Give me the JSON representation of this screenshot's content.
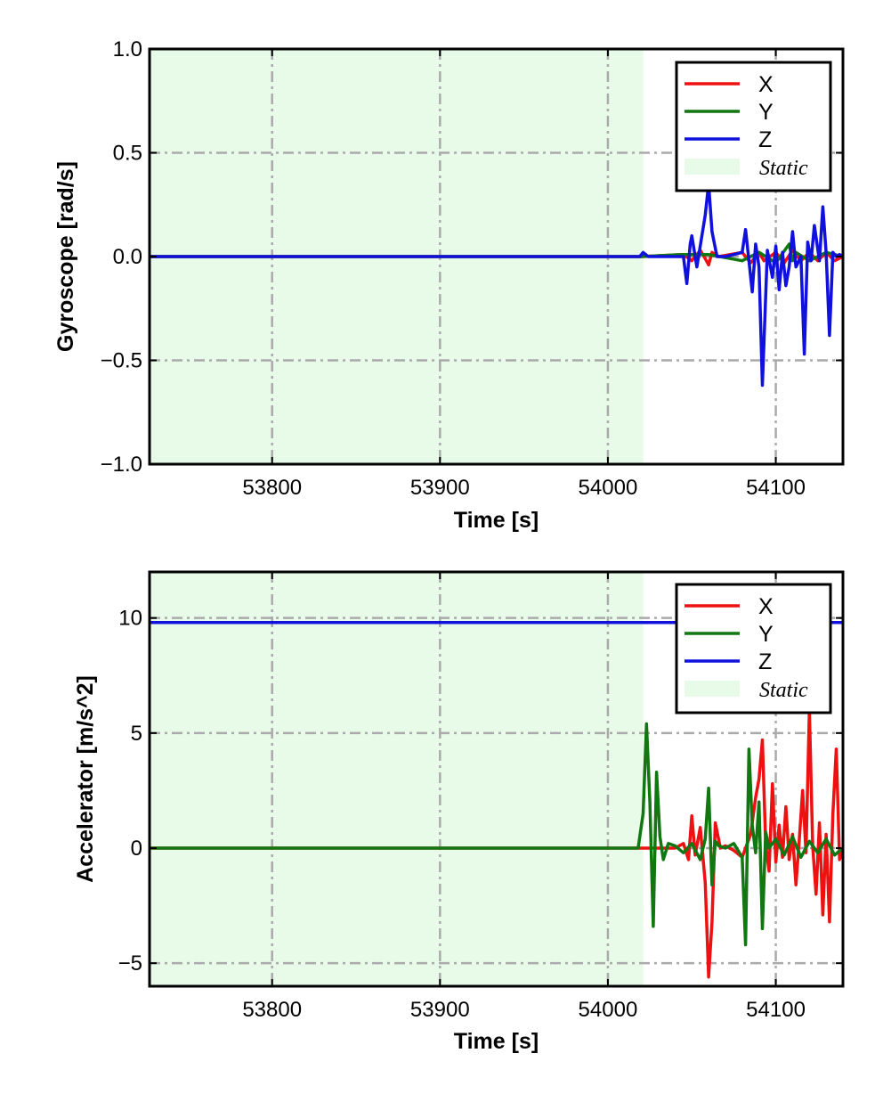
{
  "chart_data": [
    {
      "type": "line",
      "xlabel": "Time [s]",
      "ylabel": "Gyroscope [rad/s]",
      "xlim": [
        53727,
        54140
      ],
      "ylim": [
        -1.0,
        1.0
      ],
      "xticks": [
        53800,
        53900,
        54000,
        54100
      ],
      "xtick_labels": [
        "53800",
        "53900",
        "54000",
        "54100"
      ],
      "yticks": [
        -1.0,
        -0.5,
        0.0,
        0.5,
        1.0
      ],
      "ytick_labels": [
        "−1.0",
        "−0.5",
        "0.0",
        "0.5",
        "1.0"
      ],
      "grid": true,
      "legend_position": "top-right",
      "static_region": {
        "label": "Static",
        "color": "#e8fbe8",
        "x_start": 53727,
        "x_end": 54021
      },
      "series": [
        {
          "name": "X",
          "color": "#ee1111",
          "x": [
            53727,
            54020,
            54045,
            54050,
            54055,
            54058,
            54060,
            54062,
            54066,
            54080,
            54085,
            54090,
            54093,
            54100,
            54105,
            54110,
            54115,
            54120,
            54125,
            54130,
            54135,
            54140
          ],
          "y": [
            0.0,
            0.0,
            0.01,
            -0.02,
            0.03,
            -0.01,
            -0.04,
            0.02,
            0.0,
            0.02,
            -0.03,
            0.02,
            -0.02,
            0.02,
            -0.03,
            0.03,
            -0.02,
            0.02,
            -0.02,
            0.02,
            -0.02,
            0.0
          ]
        },
        {
          "name": "Y",
          "color": "#117711",
          "x": [
            53727,
            54020,
            54045,
            54060,
            54080,
            54090,
            54100,
            54108,
            54110,
            54112,
            54120,
            54130,
            54140
          ],
          "y": [
            0.0,
            0.0,
            0.01,
            0.01,
            -0.02,
            0.02,
            -0.03,
            0.06,
            -0.02,
            0.02,
            -0.02,
            0.02,
            0.0
          ]
        },
        {
          "name": "Z",
          "color": "#1111dd",
          "x": [
            53727,
            54019,
            54021,
            54024,
            54045,
            54047,
            54049,
            54050,
            54053,
            54058,
            54060,
            54062,
            54065,
            54070,
            54080,
            54082,
            54084,
            54086,
            54088,
            54090,
            54092,
            54095,
            54098,
            54100,
            54102,
            54104,
            54106,
            54108,
            54110,
            54112,
            54115,
            54117,
            54119,
            54121,
            54123,
            54126,
            54128,
            54130,
            54132,
            54134,
            54136,
            54138,
            54140
          ],
          "y": [
            0.0,
            0.0,
            0.02,
            0.0,
            0.0,
            -0.13,
            0.06,
            0.1,
            -0.05,
            0.2,
            0.35,
            0.12,
            0.0,
            0.0,
            0.02,
            0.13,
            -0.02,
            -0.17,
            0.06,
            -0.05,
            -0.62,
            0.03,
            -0.1,
            0.05,
            -0.16,
            0.02,
            -0.14,
            -0.05,
            0.12,
            -0.05,
            0.0,
            -0.47,
            0.07,
            -0.02,
            0.15,
            -0.02,
            0.24,
            0.02,
            -0.38,
            0.02,
            0.0,
            0.01,
            0.0
          ]
        }
      ]
    },
    {
      "type": "line",
      "xlabel": "Time [s]",
      "ylabel": "Accelerator [m/s^2]",
      "xlim": [
        53727,
        54140
      ],
      "ylim": [
        -6,
        12
      ],
      "xticks": [
        53800,
        53900,
        54000,
        54100
      ],
      "xtick_labels": [
        "53800",
        "53900",
        "54000",
        "54100"
      ],
      "yticks": [
        -5,
        0,
        5,
        10
      ],
      "ytick_labels": [
        "−5",
        "0",
        "5",
        "10"
      ],
      "grid": true,
      "legend_position": "top-right",
      "static_region": {
        "label": "Static",
        "color": "#e8fbe8",
        "x_start": 53727,
        "x_end": 54021
      },
      "series": [
        {
          "name": "X",
          "color": "#ee1111",
          "x": [
            53727,
            54020,
            54040,
            54045,
            54048,
            54050,
            54052,
            54055,
            54058,
            54060,
            54062,
            54064,
            54067,
            54070,
            54075,
            54080,
            54085,
            54088,
            54090,
            54092,
            54094,
            54096,
            54098,
            54100,
            54102,
            54104,
            54106,
            54108,
            54110,
            54112,
            54114,
            54116,
            54118,
            54120,
            54122,
            54124,
            54126,
            54128,
            54130,
            54132,
            54134,
            54136,
            54138,
            54140
          ],
          "y": [
            0.0,
            0.0,
            0.0,
            0.2,
            -0.5,
            1.4,
            -0.3,
            0.9,
            -1.5,
            -5.6,
            -3.2,
            1.1,
            0.0,
            0.1,
            -0.1,
            -0.4,
            0.6,
            2.2,
            3.0,
            4.7,
            0.2,
            -1.0,
            2.8,
            -0.6,
            1.0,
            -0.4,
            1.8,
            -0.5,
            0.6,
            -1.6,
            0.4,
            2.5,
            -0.2,
            6.0,
            0.1,
            -2.0,
            1.1,
            -2.9,
            0.6,
            -3.2,
            1.5,
            4.3,
            -0.5,
            0.0
          ]
        },
        {
          "name": "Y",
          "color": "#117711",
          "x": [
            53727,
            54018,
            54021,
            54023,
            54025,
            54027,
            54029,
            54031,
            54033,
            54036,
            54040,
            54045,
            54050,
            54055,
            54058,
            54060,
            54062,
            54064,
            54066,
            54070,
            54075,
            54080,
            54082,
            54084,
            54086,
            54088,
            54090,
            54092,
            54094,
            54096,
            54100,
            54105,
            54110,
            54115,
            54120,
            54125,
            54130,
            54135,
            54140
          ],
          "y": [
            0.0,
            0.0,
            1.5,
            5.4,
            2.0,
            -3.4,
            3.3,
            0.5,
            -0.5,
            0.2,
            0.1,
            -0.2,
            0.2,
            -0.5,
            0.4,
            2.6,
            -1.6,
            0.3,
            0.1,
            0.0,
            0.2,
            -0.4,
            -4.2,
            4.3,
            1.0,
            -0.2,
            2.0,
            -3.5,
            0.7,
            0.0,
            0.4,
            -0.3,
            0.5,
            -0.4,
            0.3,
            -0.2,
            0.4,
            -0.3,
            0.0
          ]
        },
        {
          "name": "Z",
          "color": "#1111dd",
          "x": [
            53727,
            53800,
            53900,
            54000,
            54060,
            54100,
            54140
          ],
          "y": [
            9.8,
            9.8,
            9.8,
            9.8,
            9.8,
            9.8,
            9.8
          ]
        }
      ]
    }
  ]
}
